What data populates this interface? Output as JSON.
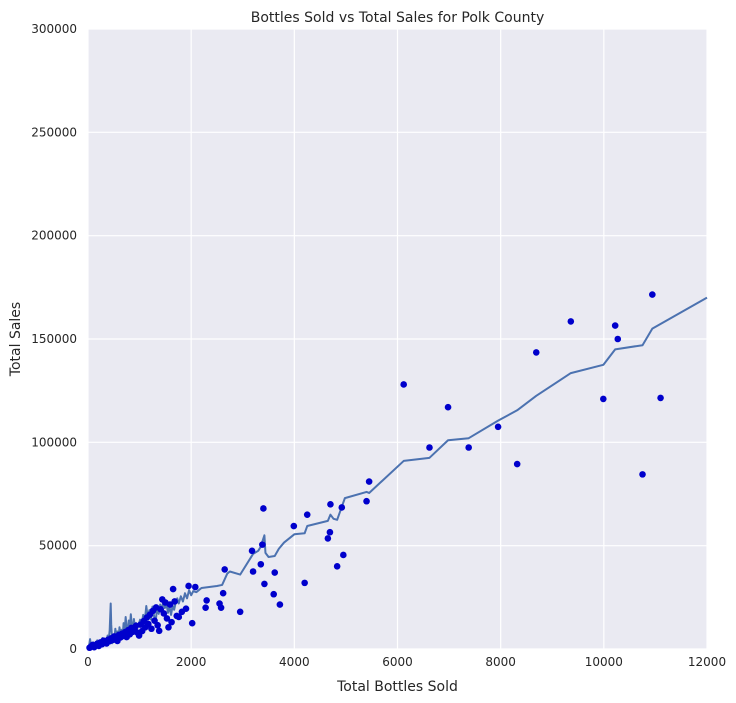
{
  "chart_data": {
    "type": "scatter",
    "title": "Bottles Sold vs Total Sales for Polk County",
    "xlabel": "Total Bottles Sold",
    "ylabel": "Total Sales",
    "xlim": [
      0,
      12000
    ],
    "ylim": [
      0,
      300000
    ],
    "xticks": [
      "0",
      "2000",
      "4000",
      "6000",
      "8000",
      "10000",
      "12000"
    ],
    "yticks": [
      "0",
      "50000",
      "100000",
      "150000",
      "200000",
      "250000",
      "300000"
    ],
    "grid": true,
    "background_color": "#eaeaf2",
    "grid_color": "#ffffff",
    "series": [
      {
        "kind": "scatter",
        "color": "#0000cc",
        "points": [
          [
            30,
            600
          ],
          [
            60,
            1200
          ],
          [
            90,
            2000
          ],
          [
            120,
            900
          ],
          [
            150,
            1800
          ],
          [
            180,
            2600
          ],
          [
            210,
            1500
          ],
          [
            240,
            3200
          ],
          [
            270,
            2300
          ],
          [
            300,
            4000
          ],
          [
            330,
            3100
          ],
          [
            360,
            2700
          ],
          [
            390,
            4500
          ],
          [
            420,
            3800
          ],
          [
            450,
            5200
          ],
          [
            480,
            4400
          ],
          [
            510,
            6100
          ],
          [
            540,
            5000
          ],
          [
            570,
            3900
          ],
          [
            600,
            6800
          ],
          [
            630,
            5600
          ],
          [
            660,
            7400
          ],
          [
            690,
            6300
          ],
          [
            720,
            8200
          ],
          [
            750,
            5800
          ],
          [
            780,
            9100
          ],
          [
            810,
            7100
          ],
          [
            840,
            10200
          ],
          [
            870,
            8300
          ],
          [
            900,
            9500
          ],
          [
            930,
            11200
          ],
          [
            960,
            7900
          ],
          [
            990,
            6500
          ],
          [
            1020,
            11800
          ],
          [
            1050,
            8700
          ],
          [
            1080,
            13500
          ],
          [
            1110,
            10500
          ],
          [
            1140,
            15200
          ],
          [
            1170,
            12100
          ],
          [
            1200,
            16600
          ],
          [
            1230,
            9800
          ],
          [
            1260,
            18500
          ],
          [
            1290,
            13700
          ],
          [
            1320,
            20100
          ],
          [
            1350,
            11500
          ],
          [
            1380,
            8800
          ],
          [
            1410,
            19200
          ],
          [
            1440,
            24000
          ],
          [
            1470,
            17200
          ],
          [
            1500,
            22500
          ],
          [
            1530,
            14800
          ],
          [
            1560,
            10500
          ],
          [
            1590,
            21500
          ],
          [
            1620,
            13000
          ],
          [
            1650,
            29000
          ],
          [
            1680,
            23000
          ],
          [
            1720,
            16000
          ],
          [
            1760,
            15500
          ],
          [
            1820,
            18000
          ],
          [
            1900,
            19500
          ],
          [
            1950,
            30500
          ],
          [
            2020,
            12500
          ],
          [
            2080,
            30000
          ],
          [
            2280,
            20000
          ],
          [
            2300,
            23500
          ],
          [
            2550,
            22000
          ],
          [
            2580,
            20000
          ],
          [
            2620,
            27000
          ],
          [
            2650,
            38500
          ],
          [
            2950,
            18000
          ],
          [
            3180,
            47500
          ],
          [
            3200,
            37500
          ],
          [
            3350,
            41000
          ],
          [
            3380,
            50500
          ],
          [
            3400,
            68000
          ],
          [
            3420,
            31500
          ],
          [
            3600,
            26500
          ],
          [
            3620,
            37000
          ],
          [
            3720,
            21500
          ],
          [
            3990,
            59500
          ],
          [
            4200,
            32000
          ],
          [
            4250,
            65000
          ],
          [
            4650,
            53500
          ],
          [
            4690,
            56500
          ],
          [
            4700,
            70000
          ],
          [
            4830,
            40000
          ],
          [
            4920,
            68500
          ],
          [
            4950,
            45500
          ],
          [
            5400,
            71500
          ],
          [
            5450,
            81000
          ],
          [
            6120,
            128000
          ],
          [
            6620,
            97500
          ],
          [
            6980,
            117000
          ],
          [
            7380,
            97500
          ],
          [
            7950,
            107500
          ],
          [
            8320,
            89500
          ],
          [
            8690,
            143500
          ],
          [
            9360,
            158500
          ],
          [
            9990,
            121000
          ],
          [
            10220,
            156500
          ],
          [
            10270,
            150000
          ],
          [
            10750,
            84500
          ],
          [
            10940,
            171500
          ],
          [
            11100,
            121500
          ]
        ]
      },
      {
        "kind": "line",
        "color": "#4c72b0",
        "points": [
          [
            0,
            0
          ],
          [
            20,
            1500
          ],
          [
            40,
            4800
          ],
          [
            60,
            1200
          ],
          [
            80,
            500
          ],
          [
            100,
            3200
          ],
          [
            120,
            1000
          ],
          [
            140,
            2800
          ],
          [
            160,
            1400
          ],
          [
            180,
            4200
          ],
          [
            200,
            2000
          ],
          [
            220,
            1100
          ],
          [
            240,
            3800
          ],
          [
            260,
            2400
          ],
          [
            280,
            5300
          ],
          [
            300,
            2900
          ],
          [
            320,
            4700
          ],
          [
            340,
            2300
          ],
          [
            360,
            3600
          ],
          [
            380,
            6500
          ],
          [
            400,
            4000
          ],
          [
            420,
            9000
          ],
          [
            440,
            22000
          ],
          [
            450,
            12000
          ],
          [
            470,
            2800
          ],
          [
            490,
            6800
          ],
          [
            510,
            4300
          ],
          [
            530,
            9800
          ],
          [
            550,
            5200
          ],
          [
            570,
            8500
          ],
          [
            590,
            3800
          ],
          [
            610,
            10500
          ],
          [
            630,
            6700
          ],
          [
            650,
            9300
          ],
          [
            670,
            5600
          ],
          [
            690,
            12500
          ],
          [
            710,
            8000
          ],
          [
            730,
            15500
          ],
          [
            750,
            10000
          ],
          [
            770,
            7400
          ],
          [
            790,
            13800
          ],
          [
            810,
            9600
          ],
          [
            830,
            16800
          ],
          [
            850,
            11500
          ],
          [
            870,
            8900
          ],
          [
            890,
            14500
          ],
          [
            910,
            10300
          ],
          [
            930,
            12600
          ],
          [
            950,
            9700
          ],
          [
            980,
            11800
          ],
          [
            1010,
            14200
          ],
          [
            1040,
            12000
          ],
          [
            1070,
            16500
          ],
          [
            1100,
            13400
          ],
          [
            1130,
            20800
          ],
          [
            1160,
            15000
          ],
          [
            1190,
            18800
          ],
          [
            1220,
            14300
          ],
          [
            1250,
            20500
          ],
          [
            1280,
            16000
          ],
          [
            1310,
            13200
          ],
          [
            1340,
            19500
          ],
          [
            1370,
            17000
          ],
          [
            1400,
            21500
          ],
          [
            1430,
            18300
          ],
          [
            1460,
            23500
          ],
          [
            1490,
            19800
          ],
          [
            1520,
            22000
          ],
          [
            1550,
            17500
          ],
          [
            1580,
            20500
          ],
          [
            1610,
            16500
          ],
          [
            1640,
            21000
          ],
          [
            1670,
            19000
          ],
          [
            1700,
            22500
          ],
          [
            1730,
            24500
          ],
          [
            1760,
            22000
          ],
          [
            1800,
            25500
          ],
          [
            1840,
            23000
          ],
          [
            1880,
            27000
          ],
          [
            1920,
            24500
          ],
          [
            1960,
            28500
          ],
          [
            2000,
            26000
          ],
          [
            2040,
            28000
          ],
          [
            2100,
            27500
          ],
          [
            2200,
            29500
          ],
          [
            2500,
            30500
          ],
          [
            2600,
            31000
          ],
          [
            2700,
            36500
          ],
          [
            2750,
            37500
          ],
          [
            2950,
            36000
          ],
          [
            3200,
            46000
          ],
          [
            3300,
            47500
          ],
          [
            3350,
            49500
          ],
          [
            3380,
            52000
          ],
          [
            3420,
            55000
          ],
          [
            3440,
            46500
          ],
          [
            3500,
            44500
          ],
          [
            3620,
            45000
          ],
          [
            3700,
            48500
          ],
          [
            3800,
            51500
          ],
          [
            4000,
            55500
          ],
          [
            4200,
            56000
          ],
          [
            4250,
            59500
          ],
          [
            4650,
            62000
          ],
          [
            4700,
            65000
          ],
          [
            4760,
            63000
          ],
          [
            4830,
            62500
          ],
          [
            4980,
            73000
          ],
          [
            5400,
            76000
          ],
          [
            5450,
            75500
          ],
          [
            6120,
            91000
          ],
          [
            6620,
            92500
          ],
          [
            6980,
            101000
          ],
          [
            7380,
            102000
          ],
          [
            7950,
            110500
          ],
          [
            8320,
            115500
          ],
          [
            8690,
            122500
          ],
          [
            9360,
            133500
          ],
          [
            9990,
            137500
          ],
          [
            10220,
            145000
          ],
          [
            10750,
            147000
          ],
          [
            10940,
            155000
          ],
          [
            12000,
            170000
          ]
        ]
      }
    ]
  }
}
